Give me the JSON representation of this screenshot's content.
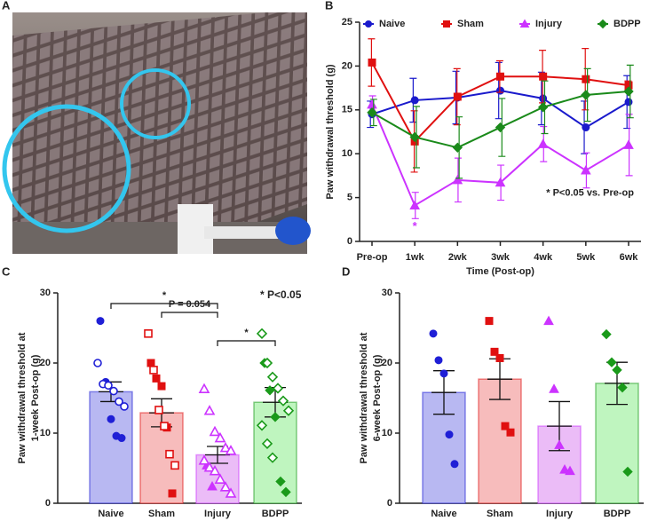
{
  "photo": {
    "panel": "A"
  },
  "chart_data": [
    {
      "type": "line",
      "panel": "B",
      "categories": [
        "Pre-op",
        "1wk",
        "2wk",
        "3wk",
        "4wk",
        "5wk",
        "6wk"
      ],
      "xlabel": "Time (Post-op)",
      "ylabel": "Paw withdrawal threshold (g)",
      "ylim": [
        0,
        25
      ],
      "yticks": [
        0,
        5,
        10,
        15,
        20,
        25
      ],
      "annotation": "* P<0.05 vs. Pre-op",
      "significance_mark": "*",
      "series": [
        {
          "name": "Naive",
          "color": "#1a1acc",
          "marker": "circle",
          "values": [
            14.5,
            16.1,
            16.4,
            17.2,
            16.3,
            13.0,
            15.9
          ],
          "errors": [
            1.5,
            2.5,
            3.0,
            3.2,
            3.0,
            3.0,
            3.0
          ]
        },
        {
          "name": "Sham",
          "color": "#e01010",
          "marker": "square",
          "values": [
            20.4,
            11.4,
            16.5,
            18.8,
            18.8,
            18.5,
            17.8
          ],
          "errors": [
            2.7,
            3.5,
            3.2,
            1.8,
            3.0,
            3.5,
            0.5
          ]
        },
        {
          "name": "Injury",
          "color": "#cc33ff",
          "marker": "triangle",
          "values": [
            15.6,
            4.1,
            7.0,
            6.7,
            11.1,
            8.1,
            11.0
          ],
          "errors": [
            1.0,
            1.5,
            2.5,
            2.0,
            2.0,
            2.0,
            3.5
          ]
        },
        {
          "name": "BDPP",
          "color": "#1a8a1a",
          "marker": "diamond",
          "values": [
            14.7,
            11.9,
            10.7,
            13.0,
            15.3,
            16.7,
            17.1
          ],
          "errors": [
            1.5,
            3.5,
            3.5,
            3.3,
            3.0,
            3.0,
            3.0
          ]
        }
      ]
    },
    {
      "type": "bar",
      "panel": "C",
      "ylabel": [
        "Paw withdrawal threshold at",
        "1-week Post-op (g)"
      ],
      "ylim": [
        0,
        30
      ],
      "yticks": [
        0,
        10,
        20,
        30
      ],
      "comparisons": [
        "*",
        "P = 0.054",
        "*"
      ],
      "note": "* P<0.05",
      "series": [
        {
          "name": "Naive",
          "color": "#1f1fd6",
          "fill": "#b8b8f2",
          "marker": "circle",
          "value": 15.9,
          "error": 1.4,
          "filled_points": [
            26,
            17.3,
            12,
            9.6,
            9.3
          ],
          "open_points": [
            20,
            17,
            16.8,
            16,
            14.5,
            13.8
          ]
        },
        {
          "name": "Sham",
          "color": "#e01010",
          "fill": "#f7bcbc",
          "marker": "square",
          "value": 12.9,
          "error": 2.0,
          "filled_points": [
            20,
            17.8,
            16.7,
            10.8,
            1.4
          ],
          "open_points": [
            24.2,
            19,
            13.3,
            11,
            7,
            5.4
          ]
        },
        {
          "name": "Injury",
          "color": "#cc33ff",
          "fill": "#ebbcf7",
          "marker": "triangle",
          "value": 6.9,
          "error": 1.2,
          "filled_points": [
            5.4,
            2.4
          ],
          "open_points": [
            16.3,
            13.2,
            10.2,
            9.3,
            7.9,
            7.5,
            6.1,
            5.1,
            4.6,
            3.4,
            2.3,
            1.4
          ]
        },
        {
          "name": "BDPP",
          "color": "#1a9a1a",
          "fill": "#bff5bf",
          "marker": "diamond",
          "value": 14.4,
          "error": 2.1,
          "filled_points": [
            20,
            16.1,
            12.3,
            3.1,
            1.6
          ],
          "open_points": [
            24.2,
            20,
            18,
            16.4,
            14.6,
            13.2,
            11.1,
            8.5,
            6.5
          ]
        }
      ]
    },
    {
      "type": "bar",
      "panel": "D",
      "ylabel": [
        "Paw withdrawal threshold at",
        "6-week Post-op (g)"
      ],
      "ylim": [
        0,
        30
      ],
      "yticks": [
        0,
        10,
        20,
        30
      ],
      "series": [
        {
          "name": "Naive",
          "color": "#1f1fd6",
          "fill": "#b8b8f2",
          "marker": "circle",
          "value": 15.8,
          "error": 3.1,
          "filled_points": [
            24.2,
            20.4,
            18.5,
            9.8,
            5.6
          ],
          "open_points": []
        },
        {
          "name": "Sham",
          "color": "#e01010",
          "fill": "#f7bcbc",
          "marker": "square",
          "value": 17.7,
          "error": 2.9,
          "filled_points": [
            26,
            21.6,
            20.7,
            11,
            10.1
          ],
          "open_points": []
        },
        {
          "name": "Injury",
          "color": "#cc33ff",
          "fill": "#ebbcf7",
          "marker": "triangle",
          "value": 11.0,
          "error": 3.5,
          "filled_points": [
            26,
            16.3,
            8.3,
            4.8,
            4.6
          ],
          "open_points": []
        },
        {
          "name": "BDPP",
          "color": "#1a9a1a",
          "fill": "#bff5bf",
          "marker": "diamond",
          "value": 17.1,
          "error": 3.0,
          "filled_points": [
            24.1,
            20.1,
            19,
            16.5,
            4.5
          ],
          "open_points": []
        }
      ]
    }
  ]
}
